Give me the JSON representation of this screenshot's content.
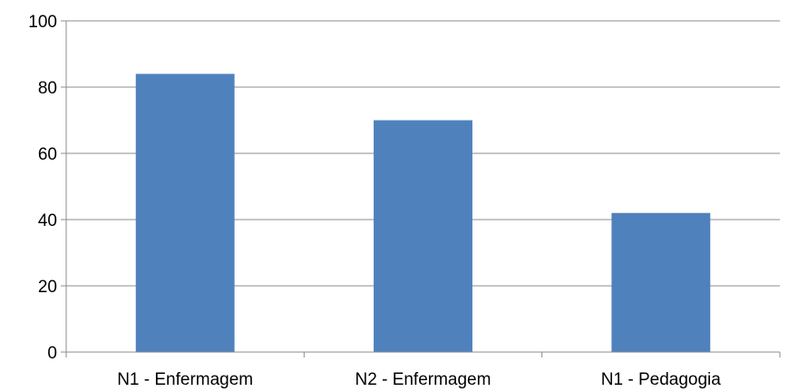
{
  "chart_data": {
    "type": "bar",
    "title": "",
    "xlabel": "",
    "ylabel": "",
    "categories": [
      "N1 - Enfermagem",
      "N2 - Enfermagem",
      "N1 - Pedagogia"
    ],
    "series": [
      {
        "values": [
          84,
          70,
          42
        ]
      }
    ],
    "ylim": [
      0,
      100
    ],
    "yticks": [
      0,
      20,
      40,
      60,
      80,
      100
    ],
    "grid": true,
    "legend": "none",
    "bar_color": "#4f81bd"
  }
}
